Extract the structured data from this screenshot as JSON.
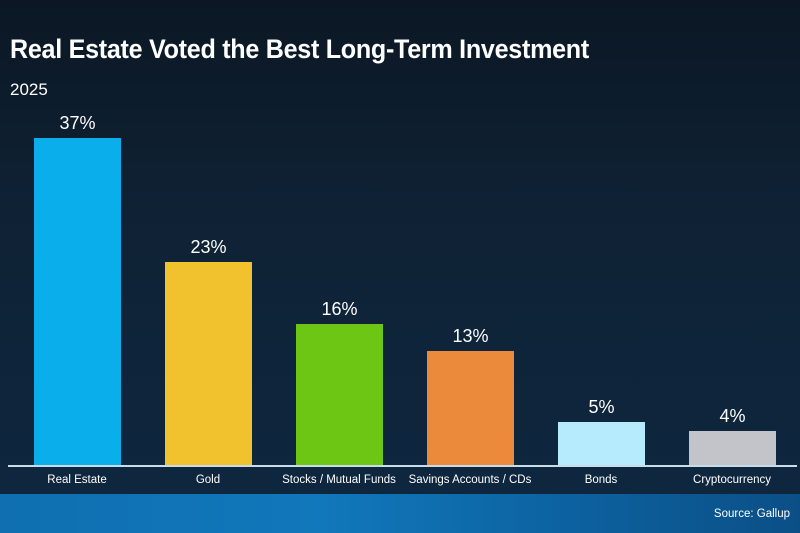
{
  "header": {
    "title": "Real Estate Voted the Best Long-Term Investment",
    "subtitle": "2025"
  },
  "footer": {
    "source": "Source: Gallup"
  },
  "colors": {
    "background": "#0f2235",
    "footer_band": "#1178bb",
    "real_estate": "#0aaeeb",
    "gold": "#f2c12e",
    "stocks": "#6ec614",
    "savings": "#ec8a3b",
    "bonds": "#b5ebfc",
    "crypto": "#c3c4ca"
  },
  "labels": {
    "values": [
      "37%",
      "23%",
      "16%",
      "13%",
      "5%",
      "4%"
    ],
    "categories": [
      "Real Estate",
      "Gold",
      "Stocks / Mutual Funds",
      "Savings Accounts / CDs",
      "Bonds",
      "Cryptocurrency"
    ]
  },
  "chart_data": {
    "type": "bar",
    "title": "Real Estate Voted the Best Long-Term Investment",
    "subtitle": "2025",
    "categories": [
      "Real Estate",
      "Gold",
      "Stocks / Mutual Funds",
      "Savings Accounts / CDs",
      "Bonds",
      "Cryptocurrency"
    ],
    "values": [
      37,
      23,
      16,
      13,
      5,
      4
    ],
    "unit": "%",
    "xlabel": "",
    "ylabel": "",
    "ylim": [
      0,
      37
    ],
    "grid": false,
    "legend": "none",
    "data_labels": true,
    "annotation": "Source: Gallup"
  }
}
